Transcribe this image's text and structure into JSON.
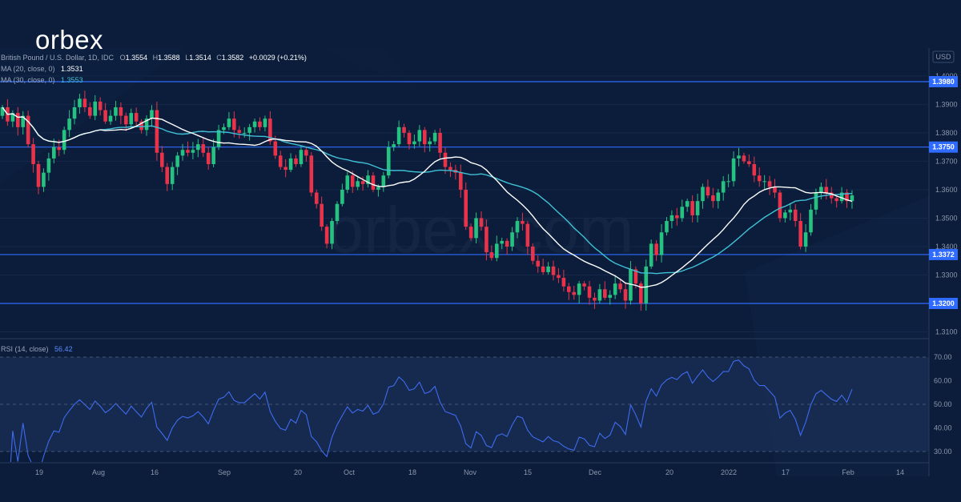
{
  "brand": "orbex",
  "watermark": "orbex.com",
  "header": {
    "symbol": "British Pound / U.S. Dollar, 1D, IDC",
    "o_label": "O",
    "o": "1.3554",
    "h_label": "H",
    "h": "1.3588",
    "l_label": "L",
    "l": "1.3514",
    "c_label": "C",
    "c": "1.3582",
    "change": "+0.0029 (+0.21%)",
    "ma20_label": "MA (20, close, 0)",
    "ma20_value": "1.3531",
    "ma30_label": "MA (30, close, 0)",
    "ma30_value": "1.3553",
    "rsi_label": "RSI (14, close)",
    "rsi_value": "56.42"
  },
  "currency": "USD",
  "colors": {
    "background": "#0b1d3a",
    "up": "#26c281",
    "down": "#e8334a",
    "ma20": "#ffffff",
    "ma30": "#3fc1d6",
    "level": "#2f6bff",
    "rsi": "#3d6cf0"
  },
  "chart_data": [
    {
      "type": "candlestick",
      "title": "British Pound / U.S. Dollar, 1D, IDC",
      "ylim": [
        1.305,
        1.405
      ],
      "y_ticks": [
        "1.3100",
        "1.3200",
        "1.3300",
        "1.3400",
        "1.3500",
        "1.3600",
        "1.3700",
        "1.3800",
        "1.3900",
        "1.4000"
      ],
      "x_labels": [
        "19",
        "Aug",
        "16",
        "Sep",
        "20",
        "Oct",
        "18",
        "Nov",
        "15",
        "Dec",
        "20",
        "2022",
        "17",
        "Feb",
        "14"
      ],
      "levels": [
        {
          "value": 1.398,
          "label": "1.3980"
        },
        {
          "value": 1.375,
          "label": "1.3750"
        },
        {
          "value": 1.3372,
          "label": "1.3372"
        },
        {
          "value": 1.32,
          "label": "1.3200"
        }
      ],
      "closes": [
        1.389,
        1.384,
        1.387,
        1.382,
        1.386,
        1.376,
        1.369,
        1.361,
        1.366,
        1.371,
        1.375,
        1.374,
        1.381,
        1.385,
        1.389,
        1.392,
        1.389,
        1.386,
        1.391,
        1.388,
        1.384,
        1.386,
        1.389,
        1.386,
        1.383,
        1.387,
        1.384,
        1.381,
        1.385,
        1.388,
        1.373,
        1.368,
        1.362,
        1.368,
        1.372,
        1.374,
        1.373,
        1.374,
        1.376,
        1.373,
        1.369,
        1.375,
        1.381,
        1.382,
        1.385,
        1.381,
        1.38,
        1.38,
        1.382,
        1.384,
        1.382,
        1.385,
        1.377,
        1.372,
        1.368,
        1.367,
        1.371,
        1.369,
        1.374,
        1.372,
        1.359,
        1.355,
        1.347,
        1.341,
        1.349,
        1.355,
        1.36,
        1.365,
        1.361,
        1.363,
        1.362,
        1.365,
        1.36,
        1.361,
        1.365,
        1.375,
        1.376,
        1.382,
        1.38,
        1.376,
        1.377,
        1.381,
        1.376,
        1.377,
        1.38,
        1.373,
        1.368,
        1.367,
        1.366,
        1.36,
        1.347,
        1.343,
        1.35,
        1.347,
        1.338,
        1.336,
        1.341,
        1.342,
        1.34,
        1.345,
        1.349,
        1.348,
        1.34,
        1.335,
        1.333,
        1.331,
        1.333,
        1.33,
        1.329,
        1.326,
        1.324,
        1.323,
        1.327,
        1.326,
        1.322,
        1.321,
        1.325,
        1.322,
        1.323,
        1.327,
        1.325,
        1.321,
        1.332,
        1.327,
        1.32,
        1.333,
        1.341,
        1.337,
        1.345,
        1.349,
        1.351,
        1.35,
        1.354,
        1.356,
        1.351,
        1.356,
        1.361,
        1.358,
        1.356,
        1.359,
        1.363,
        1.363,
        1.371,
        1.372,
        1.37,
        1.369,
        1.365,
        1.363,
        1.363,
        1.361,
        1.359,
        1.35,
        1.352,
        1.353,
        1.349,
        1.34,
        1.345,
        1.353,
        1.359,
        1.361,
        1.359,
        1.357,
        1.356,
        1.359,
        1.356,
        1.358
      ]
    },
    {
      "type": "line",
      "title": "RSI (14, close)",
      "ylim": [
        27.5,
        75.5
      ],
      "y_ticks": [
        "30.00",
        "40.00",
        "50.00",
        "60.00",
        "70.00"
      ],
      "band": [
        30,
        70
      ],
      "last_value": 56.42
    }
  ]
}
